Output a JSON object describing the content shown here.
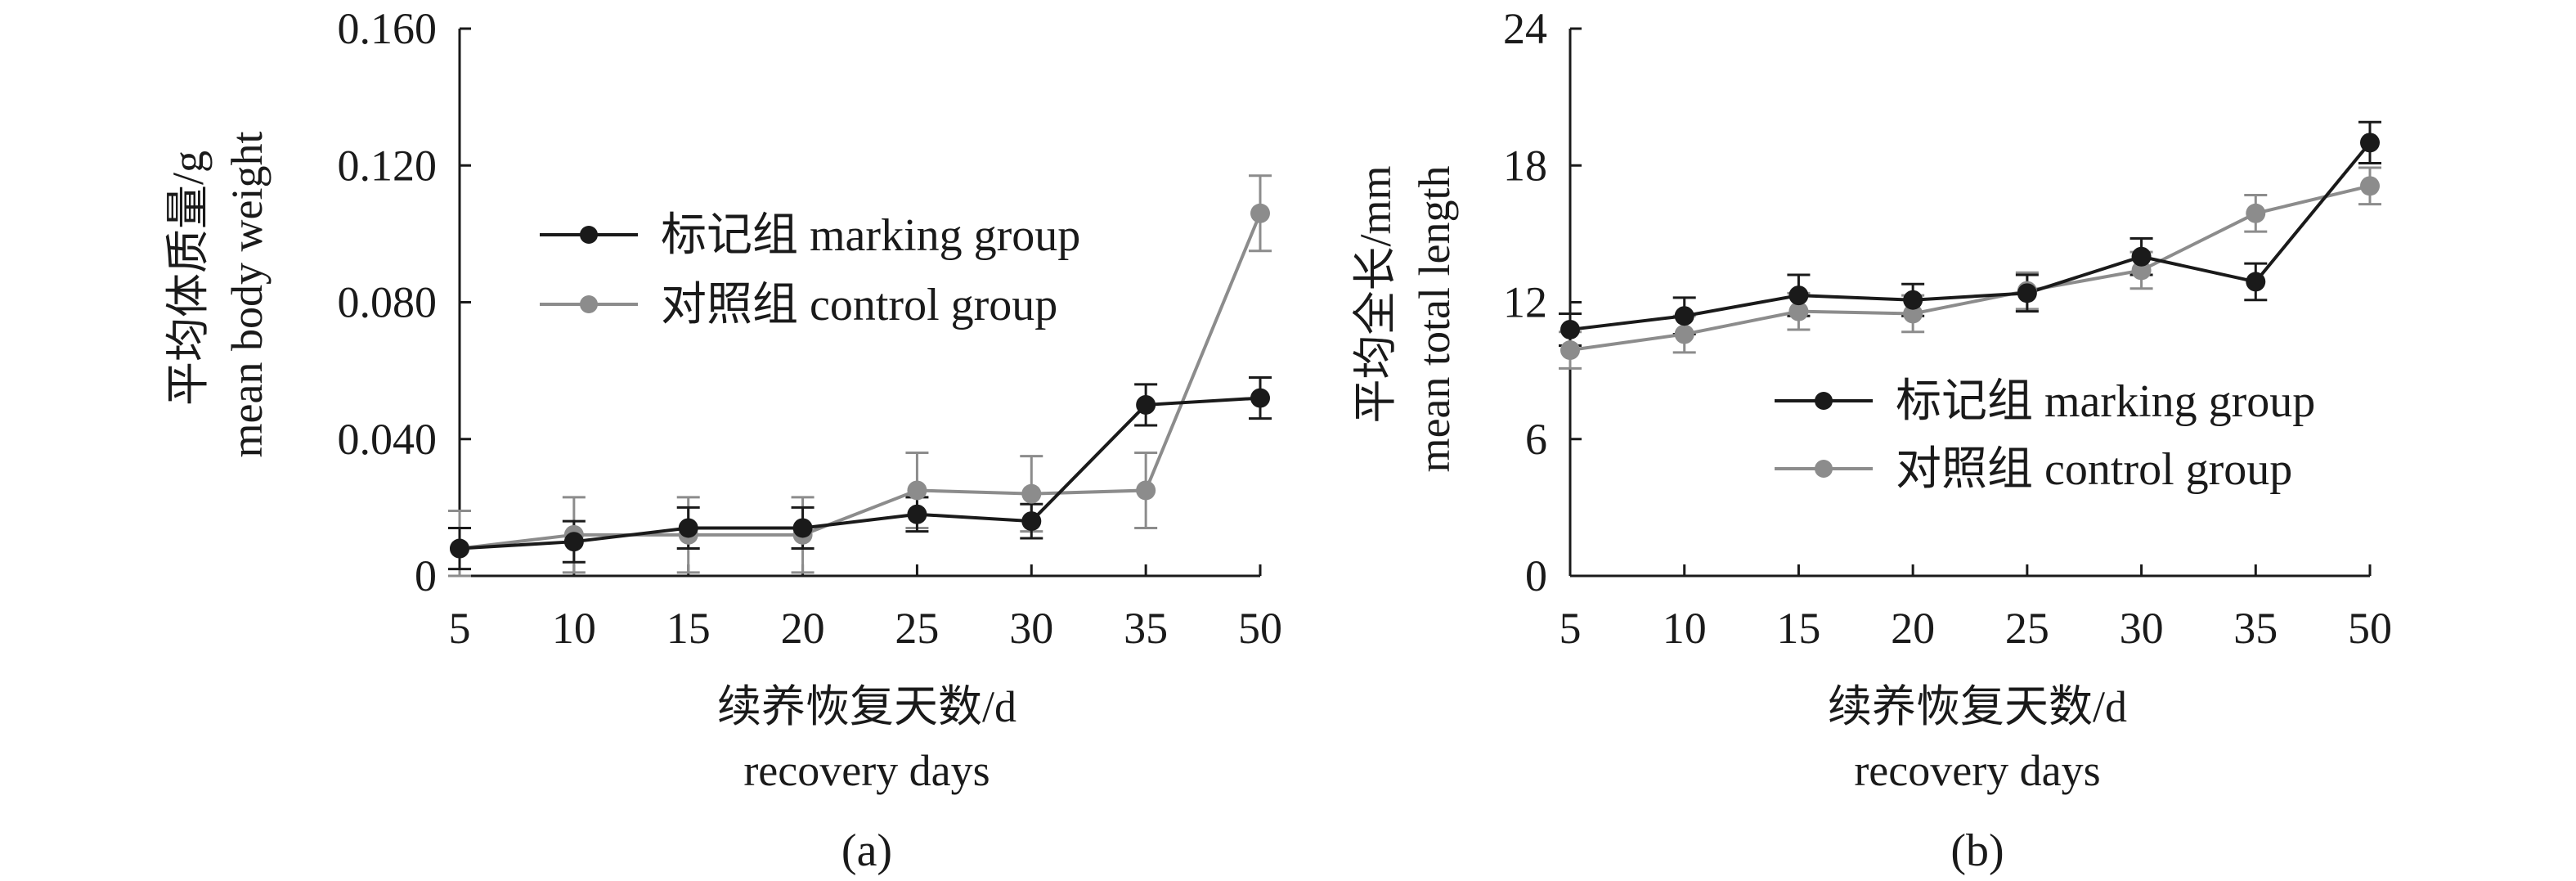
{
  "chart_data": [
    {
      "type": "line",
      "panel_label": "(a)",
      "x": [
        5,
        10,
        15,
        20,
        25,
        30,
        35,
        50
      ],
      "xlabel": [
        "续养恢复天数/d",
        "recovery days"
      ],
      "ylabel": [
        "平均体质量/g",
        "mean body weight"
      ],
      "ylim": [
        0,
        0.16
      ],
      "yticks": [
        "0",
        "0.040",
        "0.080",
        "0.120",
        "0.160"
      ],
      "legend_position": "center-left",
      "series": [
        {
          "name": "标记组 marking group",
          "color": "#1a1a1a",
          "values": [
            0.008,
            0.01,
            0.014,
            0.014,
            0.018,
            0.016,
            0.05,
            0.052
          ],
          "errors": [
            0.006,
            0.006,
            0.006,
            0.006,
            0.005,
            0.005,
            0.006,
            0.006
          ]
        },
        {
          "name": "对照组 control group",
          "color": "#8c8c8c",
          "values": [
            0.008,
            0.012,
            0.012,
            0.012,
            0.025,
            0.024,
            0.025,
            0.106
          ],
          "errors": [
            0.011,
            0.011,
            0.011,
            0.011,
            0.011,
            0.011,
            0.011,
            0.011
          ]
        }
      ]
    },
    {
      "type": "line",
      "panel_label": "(b)",
      "x": [
        5,
        10,
        15,
        20,
        25,
        30,
        35,
        50
      ],
      "xlabel": [
        "续养恢复天数/d",
        "recovery days"
      ],
      "ylabel": [
        "平均全长/mm",
        "mean total length"
      ],
      "ylim": [
        0,
        24
      ],
      "yticks": [
        "0",
        "6",
        "12",
        "18",
        "24"
      ],
      "legend_position": "center-right",
      "series": [
        {
          "name": "标记组 marking group",
          "color": "#1a1a1a",
          "values": [
            10.8,
            11.4,
            12.3,
            12.1,
            12.4,
            14.0,
            12.9,
            19.0
          ],
          "errors": [
            0.7,
            0.8,
            0.9,
            0.7,
            0.8,
            0.8,
            0.8,
            0.9
          ]
        },
        {
          "name": "对照组 control group",
          "color": "#8c8c8c",
          "values": [
            9.9,
            10.6,
            11.6,
            11.5,
            12.5,
            13.4,
            15.9,
            17.1
          ],
          "errors": [
            0.8,
            0.8,
            0.8,
            0.8,
            0.8,
            0.8,
            0.8,
            0.8
          ]
        }
      ]
    }
  ]
}
